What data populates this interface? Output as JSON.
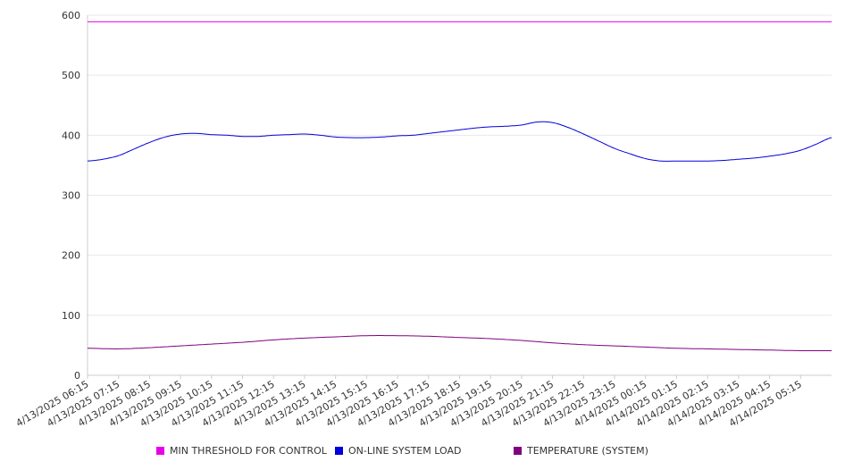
{
  "chart_data": {
    "type": "line",
    "title": "",
    "xlabel": "",
    "ylabel": "",
    "ylim": [
      0,
      600
    ],
    "y_ticks": [
      0,
      100,
      200,
      300,
      400,
      500,
      600
    ],
    "x_tick_labels": [
      "4/13/2025 06:15",
      "4/13/2025 07:15",
      "4/13/2025 08:15",
      "4/13/2025 09:15",
      "4/13/2025 10:15",
      "4/13/2025 11:15",
      "4/13/2025 12:15",
      "4/13/2025 13:15",
      "4/13/2025 14:15",
      "4/13/2025 15:15",
      "4/13/2025 16:15",
      "4/13/2025 17:15",
      "4/13/2025 18:15",
      "4/13/2025 19:15",
      "4/13/2025 20:15",
      "4/13/2025 21:15",
      "4/13/2025 22:15",
      "4/13/2025 23:15",
      "4/14/2025 00:15",
      "4/14/2025 01:15",
      "4/14/2025 02:15",
      "4/14/2025 03:15",
      "4/14/2025 04:15",
      "4/14/2025 05:15"
    ],
    "grid": true,
    "legend_position": "bottom",
    "series": [
      {
        "name": "MIN THRESHOLD FOR CONTROL",
        "color": "#e800e8",
        "x": [
          "4/13/2025 06:15",
          "4/14/2025 06:15"
        ],
        "values": [
          589,
          589
        ]
      },
      {
        "name": "ON-LINE SYSTEM LOAD",
        "color": "#0000dd",
        "x": [
          "4/13/2025 06:15",
          "4/13/2025 06:45",
          "4/13/2025 07:15",
          "4/13/2025 07:45",
          "4/13/2025 08:15",
          "4/13/2025 08:45",
          "4/13/2025 09:15",
          "4/13/2025 09:45",
          "4/13/2025 10:15",
          "4/13/2025 10:45",
          "4/13/2025 11:15",
          "4/13/2025 11:45",
          "4/13/2025 12:15",
          "4/13/2025 12:45",
          "4/13/2025 13:15",
          "4/13/2025 13:45",
          "4/13/2025 14:15",
          "4/13/2025 14:45",
          "4/13/2025 15:15",
          "4/13/2025 15:45",
          "4/13/2025 16:15",
          "4/13/2025 16:45",
          "4/13/2025 17:15",
          "4/13/2025 17:45",
          "4/13/2025 18:15",
          "4/13/2025 18:45",
          "4/13/2025 19:15",
          "4/13/2025 19:45",
          "4/13/2025 20:15",
          "4/13/2025 20:45",
          "4/13/2025 21:15",
          "4/13/2025 21:45",
          "4/13/2025 22:15",
          "4/13/2025 22:45",
          "4/13/2025 23:15",
          "4/13/2025 23:45",
          "4/14/2025 00:15",
          "4/14/2025 00:45",
          "4/14/2025 01:15",
          "4/14/2025 01:45",
          "4/14/2025 02:15",
          "4/14/2025 02:45",
          "4/14/2025 03:15",
          "4/14/2025 03:45",
          "4/14/2025 04:15",
          "4/14/2025 04:45",
          "4/14/2025 05:15",
          "4/14/2025 05:45",
          "4/14/2025 06:15"
        ],
        "values": [
          357,
          360,
          366,
          377,
          388,
          397,
          402,
          403,
          401,
          400,
          398,
          398,
          400,
          401,
          402,
          400,
          397,
          396,
          396,
          397,
          399,
          400,
          403,
          406,
          409,
          412,
          414,
          415,
          417,
          422,
          421,
          413,
          402,
          390,
          378,
          369,
          361,
          357,
          357,
          357,
          357,
          358,
          360,
          362,
          365,
          369,
          375,
          385,
          396
        ]
      },
      {
        "name": "TEMPERATURE (SYSTEM)",
        "color": "#800080",
        "x": [
          "4/13/2025 06:15",
          "4/13/2025 07:15",
          "4/13/2025 08:15",
          "4/13/2025 09:15",
          "4/13/2025 10:15",
          "4/13/2025 11:15",
          "4/13/2025 12:15",
          "4/13/2025 13:15",
          "4/13/2025 14:15",
          "4/13/2025 15:15",
          "4/13/2025 16:15",
          "4/13/2025 17:15",
          "4/13/2025 18:15",
          "4/13/2025 19:15",
          "4/13/2025 20:15",
          "4/13/2025 21:15",
          "4/13/2025 22:15",
          "4/13/2025 23:15",
          "4/14/2025 00:15",
          "4/14/2025 01:15",
          "4/14/2025 02:15",
          "4/14/2025 03:15",
          "4/14/2025 04:15",
          "4/14/2025 05:15",
          "4/14/2025 06:15"
        ],
        "values": [
          45,
          44,
          46,
          49,
          52,
          55,
          59,
          62,
          64,
          66,
          66,
          65,
          63,
          61,
          58,
          54,
          51,
          49,
          47,
          45,
          44,
          43,
          42,
          41,
          41
        ]
      }
    ]
  }
}
